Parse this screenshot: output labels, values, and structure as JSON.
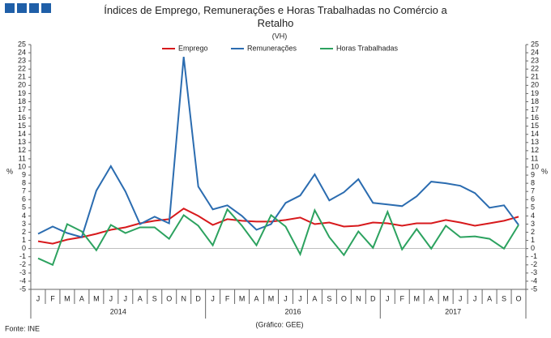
{
  "chart_data": {
    "type": "line",
    "title": "Índices de Emprego, Remunerações e Horas Trabalhadas no Comércio a Retalho",
    "subtitle": "(VH)",
    "y_label": "%",
    "source": "Fonte: INE",
    "credit": "(Gráfico: GEE)",
    "categories": [
      "J",
      "F",
      "M",
      "A",
      "M",
      "J",
      "J",
      "A",
      "S",
      "O",
      "N",
      "D",
      "J",
      "F",
      "M",
      "A",
      "M",
      "J",
      "J",
      "A",
      "S",
      "O",
      "N",
      "D",
      "J",
      "F",
      "M",
      "A",
      "M",
      "J",
      "J",
      "A",
      "S",
      "O"
    ],
    "year_labels": [
      "2014",
      "2016",
      "2017"
    ],
    "ylim": [
      -5,
      25
    ],
    "yticks": [
      -5,
      -4,
      -3,
      -2,
      -1,
      0,
      1,
      2,
      3,
      4,
      5,
      6,
      7,
      8,
      9,
      10,
      11,
      12,
      13,
      14,
      15,
      16,
      17,
      18,
      19,
      20,
      21,
      22,
      23,
      24,
      25
    ],
    "legend": "top",
    "series": [
      {
        "name": "Emprego",
        "color": "#d7191c",
        "values": [
          0.9,
          0.6,
          1.1,
          1.4,
          1.8,
          2.3,
          2.6,
          3.1,
          3.4,
          3.6,
          4.9,
          4.0,
          2.9,
          3.6,
          3.4,
          3.3,
          3.3,
          3.5,
          3.8,
          3.0,
          3.2,
          2.7,
          2.8,
          3.2,
          3.1,
          2.8,
          3.1,
          3.1,
          3.5,
          3.2,
          2.8,
          3.1,
          3.4,
          3.9
        ]
      },
      {
        "name": "Remunerações",
        "color": "#2b6cb0",
        "values": [
          1.8,
          2.7,
          1.9,
          1.4,
          7.1,
          10.1,
          7.0,
          3.0,
          3.9,
          3.1,
          23.5,
          7.6,
          4.8,
          5.3,
          4.0,
          2.3,
          3.0,
          5.6,
          6.5,
          9.1,
          5.9,
          6.9,
          8.5,
          5.6,
          5.4,
          5.2,
          6.4,
          8.2,
          8.0,
          7.7,
          6.8,
          5.0,
          5.3,
          2.9
        ]
      },
      {
        "name": "Horas Trabalhadas",
        "color": "#2ca25f",
        "values": [
          -1.2,
          -2.0,
          3.0,
          2.1,
          -0.2,
          2.9,
          1.9,
          2.6,
          2.6,
          1.2,
          4.1,
          2.8,
          0.4,
          4.8,
          2.8,
          0.4,
          4.1,
          2.7,
          -0.7,
          4.7,
          1.4,
          -0.8,
          2.1,
          0.1,
          4.5,
          -0.1,
          2.4,
          0.0,
          2.8,
          1.4,
          1.5,
          1.2,
          0.0,
          2.9
        ]
      }
    ]
  }
}
